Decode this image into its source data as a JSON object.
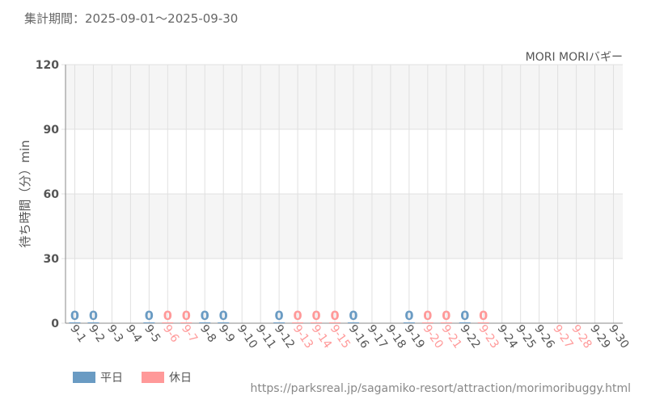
{
  "period_label": "集計期間：2025-09-01～2025-09-30",
  "source_url": "https://parksreal.jp/sagamiko-resort/attraction/morimoribuggy.html",
  "colors": {
    "weekday": "#6a9bc3",
    "holiday": "#ff9999",
    "axis_text": "#555555",
    "grid": "#e0e0e0",
    "band": "#f5f5f5"
  },
  "legend": [
    {
      "label": "平日",
      "color": "#6a9bc3"
    },
    {
      "label": "休日",
      "color": "#ff9999"
    }
  ],
  "chart_data": {
    "type": "bar",
    "title": "MORI MORIバギー",
    "xlabel": "",
    "ylabel": "待ち時間（分）min",
    "ylim": [
      0,
      120
    ],
    "yticks": [
      0,
      30,
      60,
      90,
      120
    ],
    "grid": true,
    "legend_position": "bottom-left",
    "categories": [
      "9-1",
      "9-2",
      "9-3",
      "9-4",
      "9-5",
      "9-6",
      "9-7",
      "9-8",
      "9-9",
      "9-10",
      "9-11",
      "9-12",
      "9-13",
      "9-14",
      "9-15",
      "9-16",
      "9-17",
      "9-18",
      "9-19",
      "9-20",
      "9-21",
      "9-22",
      "9-23",
      "9-24",
      "9-25",
      "9-26",
      "9-27",
      "9-28",
      "9-29",
      "9-30"
    ],
    "day_type": [
      "平日",
      "平日",
      "平日",
      "平日",
      "平日",
      "休日",
      "休日",
      "平日",
      "平日",
      "平日",
      "平日",
      "平日",
      "休日",
      "休日",
      "休日",
      "平日",
      "平日",
      "平日",
      "平日",
      "休日",
      "休日",
      "平日",
      "休日",
      "平日",
      "平日",
      "平日",
      "休日",
      "休日",
      "平日",
      "平日"
    ],
    "values": [
      0,
      0,
      null,
      null,
      0,
      0,
      0,
      0,
      0,
      null,
      null,
      0,
      0,
      0,
      0,
      0,
      null,
      null,
      0,
      0,
      0,
      0,
      0,
      null,
      null,
      null,
      null,
      null,
      null,
      null
    ],
    "data_labels": [
      "0",
      "0",
      "",
      "",
      "0",
      "0",
      "0",
      "0",
      "0",
      "",
      "",
      "0",
      "0",
      "0",
      "0",
      "0",
      "",
      "",
      "0",
      "0",
      "0",
      "0",
      "0",
      "",
      "",
      "",
      "",
      "",
      "",
      ""
    ]
  }
}
